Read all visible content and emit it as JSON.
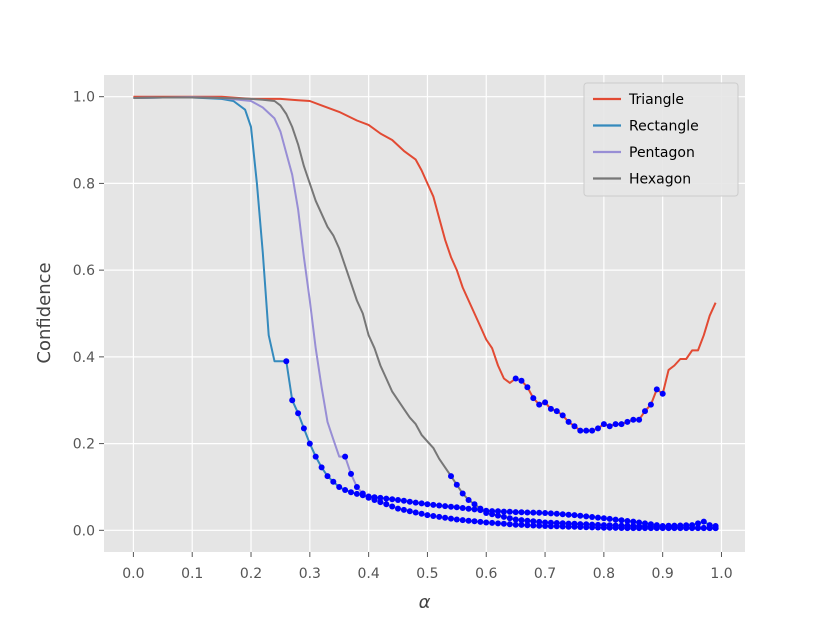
{
  "chart_data": {
    "type": "line",
    "xlabel": "α",
    "ylabel": "Confidence",
    "xlim": [
      -0.05,
      1.04
    ],
    "ylim": [
      -0.05,
      1.05
    ],
    "xticks": [
      0.0,
      0.1,
      0.2,
      0.3,
      0.4,
      0.5,
      0.6,
      0.7,
      0.8,
      0.9,
      1.0
    ],
    "xtick_labels": [
      "0.0",
      "0.1",
      "0.2",
      "0.3",
      "0.4",
      "0.5",
      "0.6",
      "0.7",
      "0.8",
      "0.9",
      "1.0"
    ],
    "yticks": [
      0.0,
      0.2,
      0.4,
      0.6,
      0.8,
      1.0
    ],
    "ytick_labels": [
      "0.0",
      "0.2",
      "0.4",
      "0.6",
      "0.8",
      "1.0"
    ],
    "grid": true,
    "legend_position": "top-right",
    "marker_color": "#0000ff",
    "series": [
      {
        "name": "Triangle",
        "color": "#e24a33",
        "x": [
          0.0,
          0.05,
          0.1,
          0.15,
          0.2,
          0.25,
          0.28,
          0.3,
          0.32,
          0.35,
          0.38,
          0.4,
          0.42,
          0.44,
          0.46,
          0.48,
          0.49,
          0.5,
          0.51,
          0.52,
          0.53,
          0.54,
          0.55,
          0.56,
          0.57,
          0.58,
          0.59,
          0.6,
          0.61,
          0.62,
          0.63,
          0.64,
          0.65,
          0.66,
          0.67,
          0.68,
          0.69,
          0.7,
          0.71,
          0.72,
          0.73,
          0.74,
          0.75,
          0.76,
          0.77,
          0.78,
          0.79,
          0.8,
          0.81,
          0.82,
          0.83,
          0.84,
          0.85,
          0.86,
          0.87,
          0.88,
          0.89,
          0.9,
          0.91,
          0.92,
          0.93,
          0.94,
          0.95,
          0.96,
          0.97,
          0.98,
          0.99
        ],
        "y": [
          1.0,
          1.0,
          1.0,
          1.0,
          0.995,
          0.995,
          0.992,
          0.99,
          0.98,
          0.965,
          0.945,
          0.935,
          0.915,
          0.9,
          0.875,
          0.855,
          0.83,
          0.8,
          0.77,
          0.72,
          0.67,
          0.63,
          0.6,
          0.56,
          0.53,
          0.5,
          0.47,
          0.44,
          0.42,
          0.38,
          0.35,
          0.34,
          0.35,
          0.345,
          0.33,
          0.305,
          0.29,
          0.295,
          0.28,
          0.275,
          0.265,
          0.25,
          0.24,
          0.23,
          0.23,
          0.23,
          0.235,
          0.245,
          0.24,
          0.245,
          0.245,
          0.25,
          0.255,
          0.255,
          0.275,
          0.29,
          0.325,
          0.315,
          0.37,
          0.38,
          0.395,
          0.395,
          0.415,
          0.415,
          0.45,
          0.495,
          0.525
        ],
        "marked_x_from": 0.65,
        "marked_x_to": 0.9
      },
      {
        "name": "Rectangle",
        "color": "#348abd",
        "x": [
          0.0,
          0.05,
          0.1,
          0.15,
          0.17,
          0.19,
          0.2,
          0.21,
          0.22,
          0.23,
          0.24,
          0.25,
          0.26,
          0.27,
          0.28,
          0.29,
          0.3,
          0.31,
          0.32,
          0.33,
          0.34,
          0.35,
          0.36,
          0.37,
          0.38,
          0.39,
          0.4,
          0.45,
          0.5,
          0.55,
          0.6,
          0.65,
          0.7,
          0.75,
          0.8,
          0.85,
          0.9,
          0.95,
          0.97,
          0.98,
          0.99
        ],
        "y": [
          0.997,
          0.998,
          0.998,
          0.995,
          0.99,
          0.97,
          0.93,
          0.8,
          0.64,
          0.45,
          0.39,
          0.39,
          0.39,
          0.3,
          0.27,
          0.235,
          0.2,
          0.17,
          0.145,
          0.125,
          0.112,
          0.1,
          0.093,
          0.088,
          0.084,
          0.081,
          0.078,
          0.07,
          0.06,
          0.053,
          0.045,
          0.042,
          0.04,
          0.035,
          0.028,
          0.02,
          0.01,
          0.012,
          0.02,
          0.012,
          0.01
        ],
        "marked_x_from": 0.26,
        "marked_x_to": 0.99
      },
      {
        "name": "Pentagon",
        "color": "#988ed5",
        "x": [
          0.0,
          0.05,
          0.1,
          0.15,
          0.2,
          0.22,
          0.24,
          0.25,
          0.26,
          0.27,
          0.28,
          0.29,
          0.3,
          0.31,
          0.32,
          0.33,
          0.34,
          0.35,
          0.36,
          0.37,
          0.38,
          0.39,
          0.4,
          0.42,
          0.45,
          0.5,
          0.55,
          0.6,
          0.65,
          0.7,
          0.75,
          0.8,
          0.85,
          0.9,
          0.95,
          0.99
        ],
        "y": [
          0.997,
          0.998,
          0.999,
          0.997,
          0.99,
          0.975,
          0.95,
          0.92,
          0.87,
          0.82,
          0.74,
          0.63,
          0.53,
          0.42,
          0.33,
          0.25,
          0.21,
          0.17,
          0.17,
          0.13,
          0.1,
          0.085,
          0.075,
          0.065,
          0.05,
          0.035,
          0.025,
          0.018,
          0.013,
          0.01,
          0.008,
          0.006,
          0.005,
          0.005,
          0.005,
          0.005
        ],
        "marked_x_from": 0.36,
        "marked_x_to": 0.99
      },
      {
        "name": "Hexagon",
        "color": "#777777",
        "x": [
          0.0,
          0.05,
          0.1,
          0.15,
          0.2,
          0.22,
          0.24,
          0.25,
          0.26,
          0.27,
          0.28,
          0.29,
          0.3,
          0.31,
          0.32,
          0.33,
          0.34,
          0.35,
          0.36,
          0.37,
          0.38,
          0.39,
          0.4,
          0.41,
          0.42,
          0.43,
          0.44,
          0.45,
          0.46,
          0.47,
          0.48,
          0.49,
          0.5,
          0.51,
          0.52,
          0.53,
          0.54,
          0.55,
          0.56,
          0.57,
          0.58,
          0.59,
          0.6,
          0.65,
          0.7,
          0.75,
          0.8,
          0.85,
          0.9,
          0.95,
          0.99
        ],
        "y": [
          0.997,
          0.998,
          0.998,
          0.997,
          0.995,
          0.993,
          0.99,
          0.98,
          0.96,
          0.93,
          0.89,
          0.84,
          0.8,
          0.76,
          0.73,
          0.7,
          0.68,
          0.65,
          0.61,
          0.57,
          0.53,
          0.5,
          0.45,
          0.42,
          0.38,
          0.35,
          0.32,
          0.3,
          0.28,
          0.26,
          0.245,
          0.22,
          0.205,
          0.19,
          0.165,
          0.145,
          0.125,
          0.105,
          0.085,
          0.07,
          0.06,
          0.05,
          0.04,
          0.025,
          0.018,
          0.015,
          0.012,
          0.01,
          0.008,
          0.006,
          0.005
        ],
        "marked_x_from": 0.54,
        "marked_x_to": 0.99
      }
    ]
  }
}
